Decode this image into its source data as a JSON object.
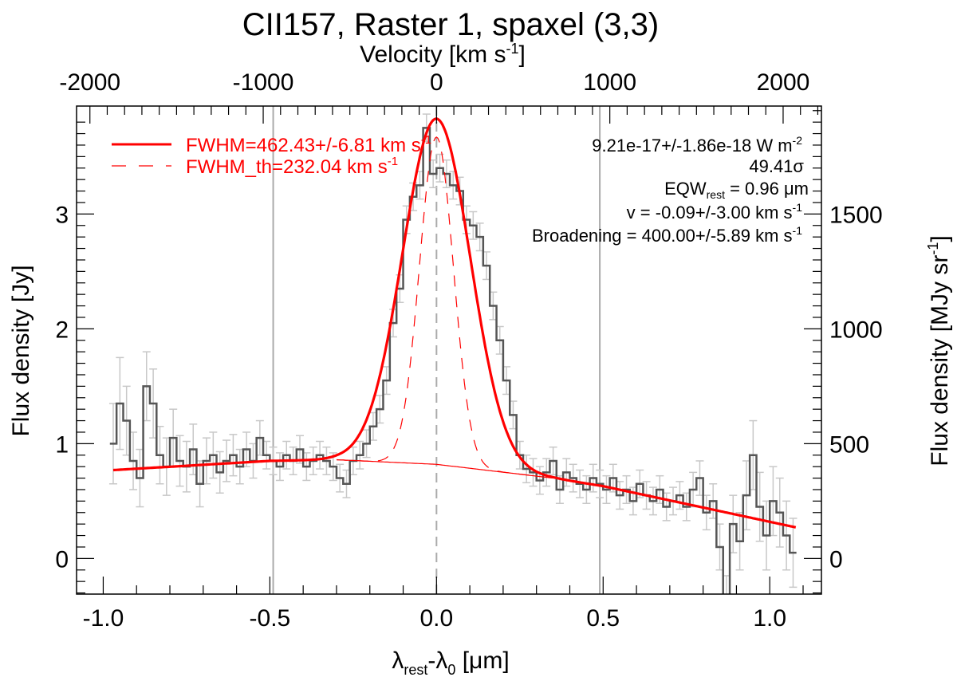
{
  "chart_data": {
    "type": "line",
    "title": "CII157, Raster 1, spaxel (3,3)",
    "top_xlabel": {
      "main": "Velocity [km s",
      "sup": "-1",
      "tail": "]"
    },
    "xlabel": {
      "a": "λ",
      "a_sub": "rest",
      "b": "-λ",
      "b_sub": "0",
      "tail": " [μm]"
    },
    "ylabel": "Flux density [Jy]",
    "right_ylabel": {
      "main": "Flux density [MJy sr",
      "sup": "-1",
      "tail": "]"
    },
    "xlim": [
      -1.08,
      1.155
    ],
    "ylim": [
      -0.31,
      3.94
    ],
    "top_xlim_kms": [
      -2077,
      2221
    ],
    "right_ylim_mjysr": [
      -155,
      1970
    ],
    "xticks": [
      "-1.0",
      "-0.5",
      "0.0",
      "0.5",
      "1.0"
    ],
    "xtick_values": [
      -1.0,
      -0.5,
      0.0,
      0.5,
      1.0
    ],
    "yticks": [
      "0",
      "1",
      "2",
      "3"
    ],
    "ytick_values": [
      0,
      1,
      2,
      3
    ],
    "top_xticks": [
      "-2000",
      "-1000",
      "0",
      "1000",
      "2000"
    ],
    "top_xtick_values": [
      -2000,
      -1000,
      0,
      1000,
      2000
    ],
    "right_yticks": [
      "0",
      "500",
      "1000",
      "1500"
    ],
    "right_ytick_values": [
      0,
      500,
      1000,
      1500
    ],
    "reference_lines_um": [
      -0.49,
      0.0,
      0.49
    ],
    "spectrum": {
      "x": [
        -0.97,
        -0.95,
        -0.93,
        -0.91,
        -0.89,
        -0.87,
        -0.85,
        -0.83,
        -0.81,
        -0.79,
        -0.77,
        -0.75,
        -0.73,
        -0.71,
        -0.69,
        -0.67,
        -0.65,
        -0.63,
        -0.61,
        -0.59,
        -0.57,
        -0.55,
        -0.53,
        -0.51,
        -0.49,
        -0.47,
        -0.45,
        -0.43,
        -0.41,
        -0.39,
        -0.37,
        -0.35,
        -0.33,
        -0.31,
        -0.29,
        -0.27,
        -0.25,
        -0.23,
        -0.21,
        -0.19,
        -0.17,
        -0.15,
        -0.13,
        -0.11,
        -0.09,
        -0.07,
        -0.05,
        -0.03,
        -0.01,
        0.01,
        0.03,
        0.05,
        0.07,
        0.09,
        0.11,
        0.13,
        0.15,
        0.17,
        0.19,
        0.21,
        0.23,
        0.25,
        0.27,
        0.29,
        0.31,
        0.33,
        0.35,
        0.37,
        0.39,
        0.41,
        0.43,
        0.45,
        0.47,
        0.49,
        0.51,
        0.53,
        0.55,
        0.57,
        0.59,
        0.61,
        0.63,
        0.65,
        0.67,
        0.69,
        0.71,
        0.73,
        0.75,
        0.77,
        0.79,
        0.81,
        0.83,
        0.85,
        0.87,
        0.89,
        0.91,
        0.93,
        0.95,
        0.97,
        0.99,
        1.01,
        1.03,
        1.05,
        1.07
      ],
      "y": [
        1.0,
        1.35,
        1.2,
        0.85,
        0.7,
        1.5,
        1.35,
        0.9,
        0.8,
        1.05,
        0.85,
        0.8,
        0.95,
        0.65,
        0.85,
        0.9,
        0.75,
        0.85,
        0.9,
        0.8,
        0.95,
        0.85,
        1.05,
        0.9,
        0.85,
        0.8,
        0.9,
        0.85,
        0.95,
        0.8,
        0.85,
        0.9,
        0.85,
        0.8,
        0.7,
        0.65,
        0.85,
        0.9,
        1.0,
        1.15,
        1.3,
        1.55,
        2.05,
        2.35,
        2.95,
        3.15,
        3.25,
        3.75,
        3.35,
        3.4,
        3.35,
        3.25,
        3.2,
        2.95,
        2.9,
        2.8,
        2.55,
        2.2,
        1.9,
        1.55,
        1.25,
        0.9,
        0.78,
        0.75,
        0.68,
        0.75,
        0.85,
        0.6,
        0.75,
        0.7,
        0.65,
        0.6,
        0.7,
        0.65,
        0.6,
        0.7,
        0.55,
        0.6,
        0.5,
        0.65,
        0.55,
        0.5,
        0.6,
        0.45,
        0.5,
        0.55,
        0.45,
        0.6,
        0.7,
        0.4,
        0.5,
        0.1,
        -0.4,
        0.3,
        0.15,
        0.55,
        0.9,
        0.45,
        0.2,
        0.5,
        0.4,
        0.2,
        0.05
      ],
      "yerr": [
        0.35,
        0.4,
        0.3,
        0.25,
        0.25,
        0.3,
        0.3,
        0.25,
        0.25,
        0.25,
        0.22,
        0.22,
        0.22,
        0.2,
        0.2,
        0.2,
        0.18,
        0.18,
        0.18,
        0.15,
        0.15,
        0.15,
        0.15,
        0.12,
        0.12,
        0.12,
        0.12,
        0.12,
        0.12,
        0.12,
        0.12,
        0.12,
        0.12,
        0.12,
        0.12,
        0.12,
        0.12,
        0.12,
        0.12,
        0.12,
        0.12,
        0.12,
        0.12,
        0.12,
        0.12,
        0.12,
        0.12,
        0.12,
        0.12,
        0.12,
        0.12,
        0.12,
        0.12,
        0.12,
        0.12,
        0.12,
        0.12,
        0.12,
        0.12,
        0.12,
        0.12,
        0.12,
        0.12,
        0.12,
        0.12,
        0.12,
        0.12,
        0.12,
        0.12,
        0.12,
        0.12,
        0.12,
        0.12,
        0.12,
        0.12,
        0.12,
        0.12,
        0.12,
        0.12,
        0.12,
        0.12,
        0.12,
        0.12,
        0.12,
        0.12,
        0.12,
        0.12,
        0.15,
        0.15,
        0.15,
        0.15,
        0.2,
        0.25,
        0.25,
        0.25,
        0.3,
        0.3,
        0.3,
        0.3,
        0.3,
        0.3,
        0.3,
        0.3
      ]
    },
    "fit": {
      "range": [
        -0.97,
        1.08
      ],
      "continuum": {
        "x": [
          -0.97,
          -0.5,
          -0.3,
          0.0,
          0.35,
          0.5,
          1.08
        ],
        "y": [
          0.77,
          0.85,
          0.86,
          0.82,
          0.7,
          0.63,
          0.27
        ]
      },
      "gaussian": {
        "center": 0.0,
        "amplitude": 3.01,
        "fwhm_um": 0.24
      },
      "thermal": {
        "center": 0.0,
        "amplitude": 2.85,
        "fwhm_um": 0.12
      }
    },
    "colors": {
      "data": "#555555",
      "errorbars": "#c8c8c8",
      "fit": "#ff0000",
      "reference": "#aaaaaa"
    },
    "legend": {
      "placement": "top-left",
      "entries": [
        {
          "text": "FWHM=462.43+/-6.81 km s",
          "sup": "-1",
          "style": "solid"
        },
        {
          "text": "FWHM_th=232.04 km s",
          "sup": "-1",
          "style": "dashed"
        }
      ]
    },
    "annotations": {
      "flux": {
        "text": "9.21e-17+/-1.86e-18 W m",
        "sup": "-2"
      },
      "snr": "49.41σ",
      "eqw": {
        "a": "EQW",
        "sub": "rest",
        "b": " = 0.96 μm"
      },
      "velocity": {
        "text": "v = -0.09+/-3.00 km s",
        "sup": "-1"
      },
      "broadening": {
        "text": "Broadening = 400.00+/-5.89 km s",
        "sup": "-1"
      }
    }
  }
}
